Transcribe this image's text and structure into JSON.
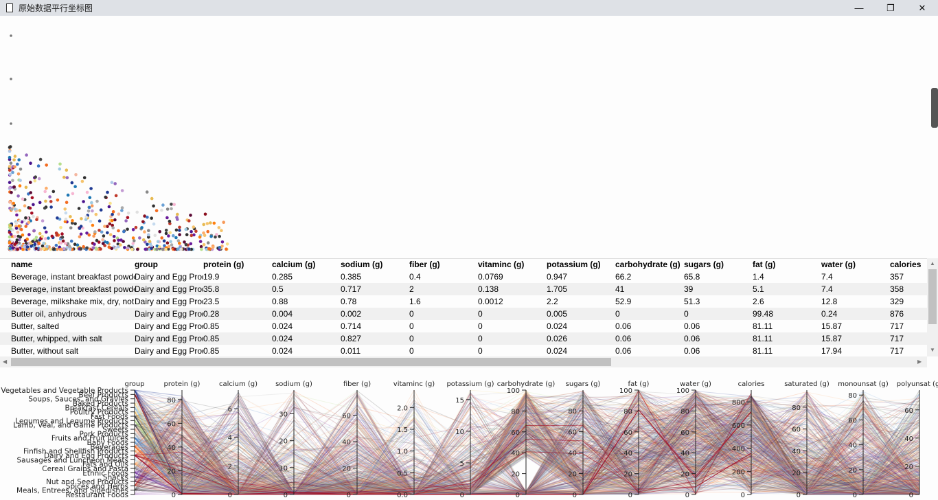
{
  "window": {
    "title": "原始数据平行坐标图",
    "minimize": "—",
    "maximize": "❐",
    "close": "✕"
  },
  "table": {
    "columns": [
      "name",
      "group",
      "protein (g)",
      "calcium (g)",
      "sodium (g)",
      "fiber (g)",
      "vitaminc (g)",
      "potassium (g)",
      "carbohydrate (g)",
      "sugars (g)",
      "fat (g)",
      "water (g)",
      "calories"
    ],
    "rows": [
      [
        "Beverage, instant breakfast powder",
        "Dairy and Egg Products",
        "19.9",
        "0.285",
        "0.385",
        "0.4",
        "0.0769",
        "0.947",
        "66.2",
        "65.8",
        "1.4",
        "7.4",
        "357"
      ],
      [
        "Beverage, instant breakfast powder",
        "Dairy and Egg Products",
        "35.8",
        "0.5",
        "0.717",
        "2",
        "0.138",
        "1.705",
        "41",
        "39",
        "5.1",
        "7.4",
        "358"
      ],
      [
        "Beverage, milkshake mix, dry, not",
        "Dairy and Egg Products",
        "23.5",
        "0.88",
        "0.78",
        "1.6",
        "0.0012",
        "2.2",
        "52.9",
        "51.3",
        "2.6",
        "12.8",
        "329"
      ],
      [
        "Butter oil, anhydrous",
        "Dairy and Egg Products",
        "0.28",
        "0.004",
        "0.002",
        "0",
        "0",
        "0.005",
        "0",
        "0",
        "99.48",
        "0.24",
        "876"
      ],
      [
        "Butter, salted",
        "Dairy and Egg Products",
        "0.85",
        "0.024",
        "0.714",
        "0",
        "0",
        "0.024",
        "0.06",
        "0.06",
        "81.11",
        "15.87",
        "717"
      ],
      [
        "Butter, whipped, with salt",
        "Dairy and Egg Products",
        "0.85",
        "0.024",
        "0.827",
        "0",
        "0",
        "0.026",
        "0.06",
        "0.06",
        "81.11",
        "15.87",
        "717"
      ],
      [
        "Butter, without salt",
        "Dairy and Egg Products",
        "0.85",
        "0.024",
        "0.011",
        "0",
        "0",
        "0.024",
        "0.06",
        "0.06",
        "81.11",
        "17.94",
        "717"
      ]
    ]
  },
  "chart_data": {
    "type": "parallel",
    "group_axis": {
      "label": "group",
      "categories": [
        "Vegetables and Vegetable Products",
        "Beef Products",
        "Soups, Sauces, and Gravies",
        "Baked Products",
        "Breakfast Cereals",
        "Poultry Products",
        "Fast Foods",
        "Legumes and Legume Products",
        "Lamb, Veal, and Game Products",
        "Sweets",
        "Pork Products",
        "Fruits and Fruit Juices",
        "Baby Foods",
        "Beverages",
        "Finfish and Shellfish Products",
        "Dairy and Egg Products",
        "Sausages and Luncheon Meats",
        "Fats and Oils",
        "Cereal Grains and Pasta",
        "Ethnic Foods",
        "Snacks",
        "Nut and Seed Products",
        "Spices and Herbs",
        "Meals, Entrees, and Sidedishes",
        "Restaurant Foods"
      ]
    },
    "axes": [
      {
        "label": "protein (g)",
        "range": [
          0,
          88
        ],
        "ticks": [
          "0",
          "20",
          "40",
          "60",
          "80"
        ]
      },
      {
        "label": "calcium (g)",
        "range": [
          0,
          7.3
        ],
        "ticks": [
          "0",
          "2",
          "4",
          "6"
        ]
      },
      {
        "label": "sodium (g)",
        "range": [
          0,
          38.8
        ],
        "ticks": [
          "0",
          "10",
          "20",
          "30"
        ]
      },
      {
        "label": "fiber (g)",
        "range": [
          0,
          79
        ],
        "ticks": [
          "0",
          "20",
          "40",
          "60"
        ]
      },
      {
        "label": "vitaminc (g)",
        "range": [
          0,
          2.4
        ],
        "ticks": [
          "0.0",
          "0.5",
          "1.0",
          "1.5",
          "2.0"
        ]
      },
      {
        "label": "potassium (g)",
        "range": [
          0,
          16.5
        ],
        "ticks": [
          "0",
          "5",
          "10",
          "15"
        ]
      },
      {
        "label": "carbohydrate (g)",
        "range": [
          0,
          100
        ],
        "ticks": [
          "0",
          "20",
          "40",
          "60",
          "80",
          "100"
        ]
      },
      {
        "label": "sugars (g)",
        "range": [
          0,
          99.8
        ],
        "ticks": [
          "0",
          "20",
          "40",
          "60",
          "80"
        ]
      },
      {
        "label": "fat (g)",
        "range": [
          0,
          100
        ],
        "ticks": [
          "0",
          "20",
          "40",
          "60",
          "80",
          "100"
        ]
      },
      {
        "label": "water (g)",
        "range": [
          0,
          100
        ],
        "ticks": [
          "0",
          "20",
          "40",
          "60",
          "80",
          "100"
        ]
      },
      {
        "label": "calories",
        "range": [
          0,
          902
        ],
        "ticks": [
          "0",
          "200",
          "400",
          "600",
          "800"
        ]
      },
      {
        "label": "saturated (g)",
        "range": [
          0,
          95.6
        ],
        "ticks": [
          "0",
          "20",
          "40",
          "60",
          "80"
        ]
      },
      {
        "label": "monounsat (g)",
        "range": [
          0,
          84
        ],
        "ticks": [
          "0",
          "20",
          "40",
          "60",
          "80"
        ]
      },
      {
        "label": "polyunsat (g)",
        "range": [
          0,
          74
        ],
        "ticks": [
          "0",
          "20",
          "40",
          "60"
        ]
      }
    ],
    "palette": [
      "#1f3a93",
      "#8b0f1e",
      "#e0e0e0",
      "#f7e08a",
      "#9ecae1",
      "#f5c36b",
      "#333333",
      "#b5df8c",
      "#444444",
      "#f4b6a0",
      "#aaaaaa",
      "#3a75c4",
      "#6aa1d6",
      "#f36c21",
      "#f79a5a",
      "#a50f25",
      "#c6dbef",
      "#fdae6b",
      "#888888",
      "#6a1b9a",
      "#4a148c",
      "#5b0a35",
      "#c0392b",
      "#2f2f2f",
      "#c39bd3"
    ]
  }
}
